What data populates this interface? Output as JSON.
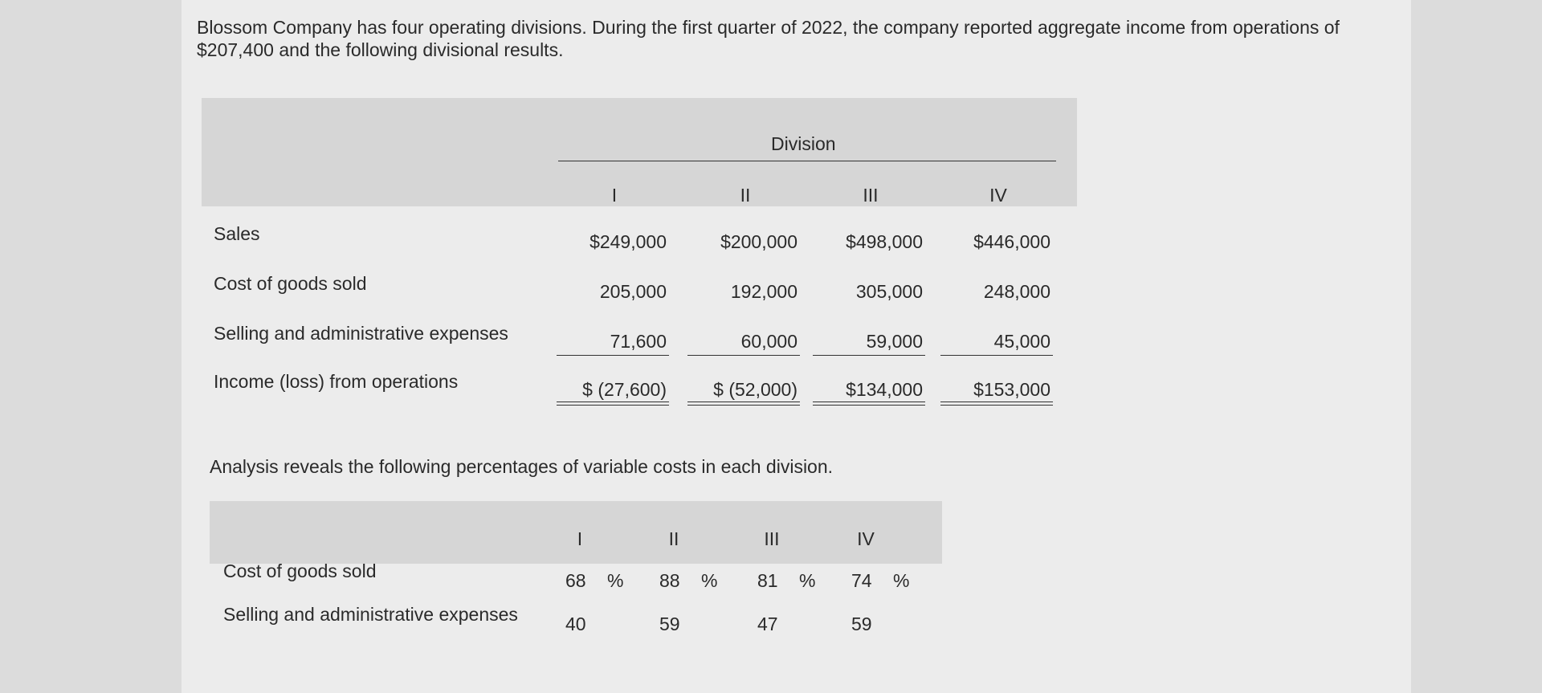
{
  "intro": "Blossom Company has four operating divisions. During the first quarter of 2022, the company reported aggregate income from operations of $207,400 and the following divisional results.",
  "table1": {
    "group_header": "Division",
    "columns": [
      "I",
      "II",
      "III",
      "IV"
    ],
    "rows": [
      {
        "label": "Sales",
        "cells": [
          "$249,000",
          "$200,000",
          "$498,000",
          "$446,000"
        ]
      },
      {
        "label": "Cost of goods sold",
        "cells": [
          "205,000",
          "192,000",
          "305,000",
          "248,000"
        ]
      },
      {
        "label": "Selling and administrative expenses",
        "cells": [
          "71,600",
          "60,000",
          "59,000",
          "45,000"
        ]
      },
      {
        "label": "Income (loss) from operations",
        "cells": [
          "$ (27,600)",
          "$ (52,000)",
          "$134,000",
          "$153,000"
        ]
      }
    ]
  },
  "analysis": "Analysis reveals the following percentages of variable costs in each division.",
  "table2": {
    "columns": [
      "I",
      "II",
      "III",
      "IV"
    ],
    "rows": [
      {
        "label": "Cost of goods sold",
        "cells": [
          {
            "value": "68",
            "unit": "%"
          },
          {
            "value": "88",
            "unit": "%"
          },
          {
            "value": "81",
            "unit": "%"
          },
          {
            "value": "74",
            "unit": "%"
          }
        ]
      },
      {
        "label": "Selling and administrative expenses",
        "cells": [
          {
            "value": "40"
          },
          {
            "value": "59"
          },
          {
            "value": "47"
          },
          {
            "value": "59"
          }
        ]
      }
    ]
  }
}
